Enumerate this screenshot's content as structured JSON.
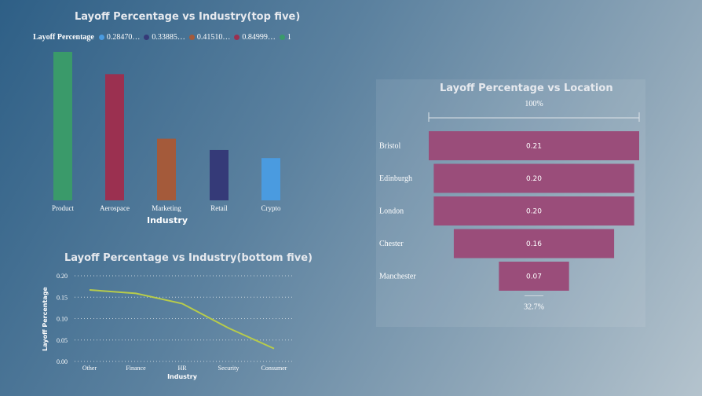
{
  "colors": {
    "green": "#3a9a6a",
    "crimson": "#9b3050",
    "orange": "#a45a3a",
    "navy": "#353a78",
    "blue": "#4a9be0",
    "funnel": "#9a4d7a",
    "line": "#b8cc4a"
  },
  "chart_data": [
    {
      "type": "bar",
      "title": "Layoff Percentage vs Industry(top five)",
      "xlabel": "Industry",
      "legend_title": "Layoff Percentage",
      "legend": [
        {
          "label": "0.28470…",
          "color": "#4a9be0"
        },
        {
          "label": "0.33885…",
          "color": "#353a78"
        },
        {
          "label": "0.41510…",
          "color": "#a45a3a"
        },
        {
          "label": "0.84999…",
          "color": "#9b3050"
        },
        {
          "label": "1",
          "color": "#3a9a6a"
        }
      ],
      "categories": [
        "Product",
        "Aerospace",
        "Marketing",
        "Retail",
        "Crypto"
      ],
      "values": [
        1,
        0.84999,
        0.4151,
        0.33885,
        0.2847
      ],
      "bar_colors": [
        "#3a9a6a",
        "#9b3050",
        "#a45a3a",
        "#353a78",
        "#4a9be0"
      ],
      "ylim": [
        0,
        1
      ]
    },
    {
      "type": "line",
      "title": "Layoff Percentage vs Industry(bottom five)",
      "xlabel": "Industry",
      "ylabel": "Layoff Percentage",
      "categories": [
        "Other",
        "Finance",
        "HR",
        "Security",
        "Consumer"
      ],
      "values": [
        0.167,
        0.159,
        0.135,
        0.078,
        0.03
      ],
      "yticks": [
        "0.20",
        "0.15",
        "0.10",
        "0.05",
        "0.00"
      ],
      "ylim": [
        0,
        0.2
      ],
      "grid": true
    },
    {
      "type": "funnel",
      "title": "Layoff Percentage vs Location",
      "categories": [
        "Bristol",
        "Edinburgh",
        "London",
        "Chester",
        "Manchester"
      ],
      "values": [
        0.21,
        0.2,
        0.2,
        0.16,
        0.07
      ],
      "value_labels": [
        "0.21",
        "0.20",
        "0.20",
        "0.16",
        "0.07"
      ],
      "top_label": "100%",
      "bottom_label": "32.7%"
    }
  ]
}
